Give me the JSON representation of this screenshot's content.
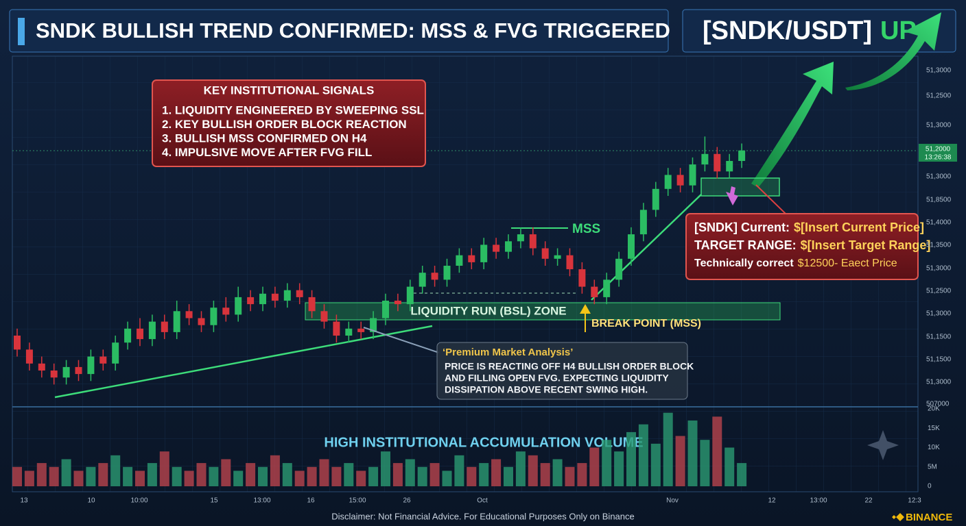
{
  "chart_data": {
    "type": "candlestick",
    "title": "SNDK BULLISH TREND CONFIRMED: MSS & FVG TRIGGERED",
    "pair": "[SNDK/USDT]",
    "direction": "UP",
    "ylim": [
      0,
      100
    ],
    "open": [
      20,
      16,
      12,
      10,
      8,
      11,
      9,
      14,
      12,
      18,
      22,
      19,
      24,
      21,
      27,
      25,
      23,
      28,
      26,
      31,
      29,
      32,
      30,
      33,
      31,
      27,
      24,
      20,
      22,
      21,
      25,
      30,
      29,
      34,
      38,
      36,
      40,
      43,
      41,
      46,
      44,
      47,
      49,
      45,
      42,
      43,
      39,
      34,
      31,
      36,
      42,
      49,
      56,
      62,
      66,
      63,
      69,
      72,
      67,
      70
    ],
    "close": [
      16,
      12,
      10,
      8,
      11,
      9,
      14,
      12,
      18,
      22,
      19,
      24,
      21,
      27,
      25,
      23,
      28,
      26,
      31,
      29,
      32,
      30,
      33,
      31,
      27,
      24,
      20,
      22,
      21,
      25,
      30,
      29,
      34,
      38,
      36,
      40,
      43,
      41,
      46,
      44,
      47,
      49,
      45,
      42,
      43,
      39,
      34,
      31,
      36,
      42,
      49,
      56,
      62,
      66,
      63,
      69,
      72,
      67,
      70,
      73
    ],
    "high": [
      22,
      18,
      14,
      12,
      13,
      13,
      16,
      16,
      20,
      24,
      25,
      26,
      26,
      30,
      29,
      27,
      30,
      31,
      34,
      33,
      34,
      34,
      35,
      35,
      33,
      29,
      26,
      24,
      24,
      27,
      32,
      32,
      36,
      40,
      40,
      42,
      45,
      45,
      48,
      48,
      49,
      51,
      51,
      47,
      45,
      45,
      41,
      36,
      38,
      44,
      51,
      58,
      64,
      68,
      68,
      71,
      77,
      74,
      72,
      75
    ],
    "low": [
      14,
      10,
      8,
      6,
      6,
      7,
      7,
      10,
      10,
      16,
      17,
      17,
      19,
      19,
      23,
      21,
      21,
      24,
      24,
      27,
      27,
      28,
      28,
      29,
      25,
      22,
      18,
      18,
      19,
      19,
      23,
      27,
      27,
      32,
      34,
      34,
      38,
      39,
      39,
      42,
      42,
      45,
      43,
      40,
      40,
      37,
      32,
      29,
      29,
      34,
      40,
      47,
      54,
      60,
      61,
      61,
      67,
      65,
      65,
      68
    ],
    "price_labels": [
      "51,3000",
      "51,2500",
      "51,3000",
      "51,3000",
      "51,8500",
      "51,4000",
      "51,3500",
      "51,3000",
      "51,2500",
      "51,3000",
      "51,1500",
      "51,1500",
      "51,3000",
      "507000"
    ],
    "current_price_tag": [
      "51,2000",
      "13:26:38"
    ],
    "xtick_labels": [
      "13",
      "10",
      "10:00",
      "15",
      "13:00",
      "16",
      "15:00",
      "26",
      "Oct",
      "Nov",
      "12",
      "13:00",
      "22",
      "12:3"
    ],
    "volume": {
      "ylim": [
        0,
        20
      ],
      "labels": [
        "20K",
        "15K",
        "10K",
        "5M",
        "0"
      ],
      "values": [
        5,
        4,
        6,
        5,
        7,
        4,
        5,
        6,
        8,
        5,
        4,
        6,
        9,
        5,
        4,
        6,
        5,
        7,
        4,
        6,
        5,
        8,
        6,
        4,
        5,
        7,
        5,
        6,
        4,
        5,
        9,
        6,
        7,
        5,
        6,
        4,
        8,
        5,
        6,
        7,
        5,
        9,
        8,
        6,
        7,
        5,
        6,
        10,
        12,
        9,
        14,
        16,
        11,
        19,
        13,
        17,
        12,
        18,
        10,
        6
      ],
      "label": "HIGH INSTITUTIONAL ACCUMULATION VOLUME"
    },
    "key_signals": {
      "title": "KEY INSTITUTIONAL SIGNALS",
      "items": [
        "1. LIQUIDITY ENGINEERED BY SWEEPING SSL",
        "2. KEY BULLISH ORDER BLOCK REACTION",
        "3. BULLISH MSS CONFIRMED ON H4",
        "4. IMPULSIVE MOVE AFTER FVG FILL"
      ]
    },
    "info_box": [
      [
        "[SNDK] Current:",
        "$[Insert Current Price]"
      ],
      [
        "TARGET RANGE:",
        "$[Insert Target Range]"
      ],
      [
        "Technically correct",
        "$12500- Eaect Price"
      ]
    ],
    "premium": {
      "title": "‘Premium Market Analysis’",
      "lines": [
        "PRICE IS REACTING OFF H4 BULLISH ORDER BLOCK",
        "AND FILLING OPEN FVG. EXPECTING LIQUIDITY",
        "DISSIPATION ABOVE RECENT SWING HIGH."
      ]
    },
    "zone_label": "LIQUIDITY RUN (BSL) ZONE",
    "mss_label": "MSS",
    "break_label": "BREAK POINT (MSS)",
    "disclaimer": "Disclaimer: Not Financial Advice. For Educational Purposes Only on Binance",
    "brand": "BINANCE"
  }
}
